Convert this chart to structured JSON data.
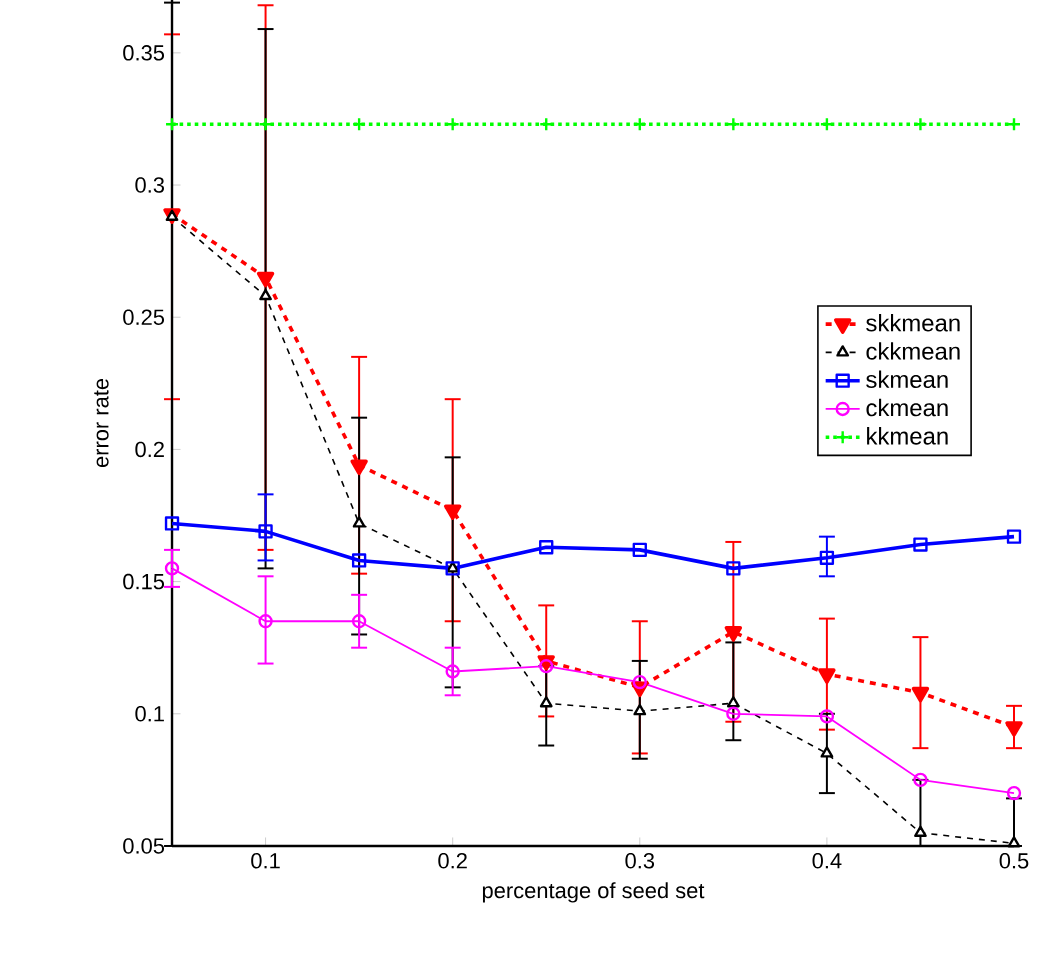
{
  "chart_data": {
    "type": "line",
    "xlabel": "percentage of seed set",
    "ylabel": "error rate",
    "x": [
      0.05,
      0.1,
      0.15,
      0.2,
      0.25,
      0.3,
      0.35,
      0.4,
      0.45,
      0.5
    ],
    "series": [
      {
        "name": "skkmean",
        "color": "#ff0000",
        "marker": "triangle",
        "line_style": "dashed",
        "values": [
          0.289,
          0.265,
          0.194,
          0.177,
          0.12,
          0.11,
          0.131,
          0.115,
          0.108,
          0.095
        ],
        "errors": [
          [
            0.219,
            0.357
          ],
          [
            0.162,
            0.368
          ],
          [
            0.153,
            0.235
          ],
          [
            0.135,
            0.219
          ],
          [
            0.099,
            0.141
          ],
          [
            0.085,
            0.135
          ],
          [
            0.097,
            0.165
          ],
          [
            0.094,
            0.136
          ],
          [
            0.087,
            0.129
          ],
          [
            0.087,
            0.103
          ]
        ]
      },
      {
        "name": "ckkmean",
        "color": "#000000",
        "marker": "triangle",
        "line_style": "dashed",
        "values": [
          0.288,
          0.258,
          0.172,
          0.155,
          0.104,
          0.101,
          0.104,
          0.085,
          0.055,
          0.051
        ],
        "errors": [
          [
            0.05,
            0.369
          ],
          [
            0.155,
            0.359
          ],
          [
            0.13,
            0.212
          ],
          [
            0.11,
            0.197
          ],
          [
            0.088,
            0.118
          ],
          [
            0.083,
            0.12
          ],
          [
            0.09,
            0.127
          ],
          [
            0.07,
            0.1
          ],
          [
            0.05,
            0.075
          ],
          [
            0.05,
            0.068
          ]
        ]
      },
      {
        "name": "skmean",
        "color": "#0000ff",
        "marker": "square",
        "line_style": "solid",
        "values": [
          0.172,
          0.169,
          0.158,
          0.155,
          0.163,
          0.162,
          0.155,
          0.159,
          0.164,
          0.167
        ],
        "errors": [
          null,
          [
            0.158,
            0.183
          ],
          null,
          null,
          null,
          null,
          null,
          [
            0.152,
            0.167
          ],
          null,
          null
        ]
      },
      {
        "name": "ckmean",
        "color": "#ff00ff",
        "marker": "circle",
        "line_style": "solid",
        "values": [
          0.155,
          0.135,
          0.135,
          0.116,
          0.118,
          0.112,
          0.1,
          0.099,
          0.075,
          0.07
        ],
        "errors": [
          [
            0.148,
            0.162
          ],
          [
            0.119,
            0.152
          ],
          [
            0.125,
            0.145
          ],
          [
            0.107,
            0.125
          ],
          null,
          null,
          null,
          null,
          null,
          null
        ]
      },
      {
        "name": "kkmean",
        "color": "#00ff00",
        "marker": "cross",
        "line_style": "dotted",
        "values": [
          0.323,
          0.323,
          0.323,
          0.323,
          0.323,
          0.323,
          0.323,
          0.323,
          0.323,
          0.323
        ]
      }
    ],
    "xlim": [
      0.05,
      0.5
    ],
    "xticks": [
      0.1,
      0.2,
      0.3,
      0.4,
      0.5
    ],
    "ylim": [
      0.05,
      0.37
    ],
    "yticks": [
      0.05,
      0.1,
      0.15,
      0.2,
      0.25,
      0.3,
      0.35
    ],
    "grid": false,
    "legend": "right"
  }
}
